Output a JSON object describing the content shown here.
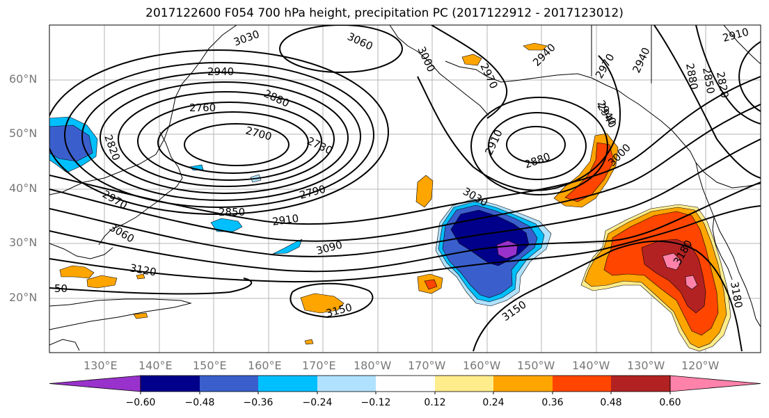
{
  "title": "2017122600 F054 700 hPa height, precipitation PC (2017122912 - 2017123012)",
  "axes": {
    "lat_labels": [
      "60°N",
      "50°N",
      "40°N",
      "30°N",
      "20°N"
    ],
    "lon_labels": [
      "130°E",
      "140°E",
      "150°E",
      "160°E",
      "170°E",
      "180°W",
      "170°W",
      "160°W",
      "150°W",
      "140°W",
      "130°W",
      "120°W"
    ]
  },
  "contour_labels": [
    "3030",
    "3060",
    "3000",
    "2970",
    "2940",
    "2940",
    "2970",
    "2940",
    "2910",
    "2880",
    "2850",
    "2820",
    "2940",
    "2760",
    "2880",
    "2700",
    "2730",
    "2820",
    "2910",
    "2880",
    "2940",
    "3000",
    "2790",
    "2850",
    "2910",
    "2970",
    "3060",
    "3030",
    "3090",
    "3120",
    "3150",
    "3150",
    "3180",
    "3180",
    "50"
  ],
  "colorbar": {
    "colors": [
      "#9932cc",
      "#00008b",
      "#3a5fcd",
      "#00bfff",
      "#b0e2ff",
      "#ffffff",
      "#ffec8b",
      "#ffa500",
      "#ff4500",
      "#b22222",
      "#ff82ab"
    ],
    "tick_labels": [
      "−0.60",
      "−0.48",
      "−0.36",
      "−0.24",
      "−0.12",
      "0.12",
      "0.24",
      "0.36",
      "0.48",
      "0.60"
    ]
  }
}
